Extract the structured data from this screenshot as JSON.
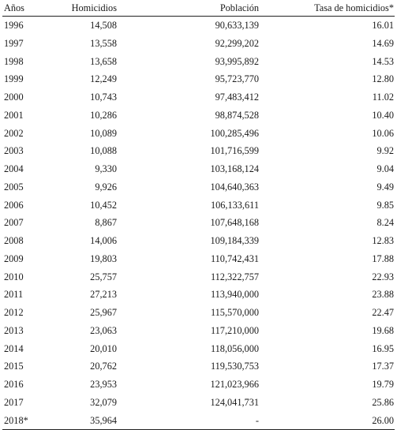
{
  "table": {
    "headers": [
      "Años",
      "Homicidios",
      "Población",
      "Tasa de homicidios*"
    ],
    "rows": [
      [
        "1996",
        "14,508",
        "90,633,139",
        "16.01"
      ],
      [
        "1997",
        "13,558",
        "92,299,202",
        "14.69"
      ],
      [
        "1998",
        "13,658",
        "93,995,892",
        "14.53"
      ],
      [
        "1999",
        "12,249",
        "95,723,770",
        "12.80"
      ],
      [
        "2000",
        "10,743",
        "97,483,412",
        "11.02"
      ],
      [
        "2001",
        "10,286",
        "98,874,528",
        "10.40"
      ],
      [
        "2002",
        "10,089",
        "100,285,496",
        "10.06"
      ],
      [
        "2003",
        "10,088",
        "101,716,599",
        "9.92"
      ],
      [
        "2004",
        "9,330",
        "103,168,124",
        "9.04"
      ],
      [
        "2005",
        "9,926",
        "104,640,363",
        "9.49"
      ],
      [
        "2006",
        "10,452",
        "106,133,611",
        "9.85"
      ],
      [
        "2007",
        "8,867",
        "107,648,168",
        "8.24"
      ],
      [
        "2008",
        "14,006",
        "109,184,339",
        "12.83"
      ],
      [
        "2009",
        "19,803",
        "110,742,431",
        "17.88"
      ],
      [
        "2010",
        "25,757",
        "112,322,757",
        "22.93"
      ],
      [
        "2011",
        "27,213",
        "113,940,000",
        "23.88"
      ],
      [
        "2012",
        "25,967",
        "115,570,000",
        "22.47"
      ],
      [
        "2013",
        "23,063",
        "117,210,000",
        "19.68"
      ],
      [
        "2014",
        "20,010",
        "118,056,000",
        "16.95"
      ],
      [
        "2015",
        "20,762",
        "119,530,753",
        "17.37"
      ],
      [
        "2016",
        "23,953",
        "121,023,966",
        "19.79"
      ],
      [
        "2017",
        "32,079",
        "124,041,731",
        "25.86"
      ],
      [
        "2018*",
        "35,964",
        "-",
        "26.00"
      ]
    ]
  }
}
